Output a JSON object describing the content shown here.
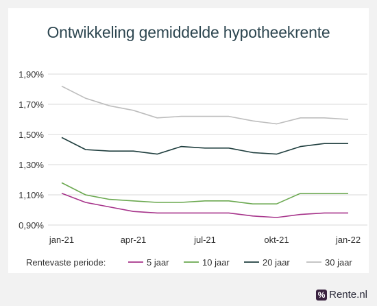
{
  "chart_data": {
    "type": "line",
    "title": "Ontwikkeling gemiddelde hypotheekrente",
    "x": [
      "jan-21",
      "feb-21",
      "mrt-21",
      "apr-21",
      "mei-21",
      "jun-21",
      "jul-21",
      "aug-21",
      "sep-21",
      "okt-21",
      "nov-21",
      "dec-21",
      "jan-22"
    ],
    "xticks": [
      "jan-21",
      "apr-21",
      "jul-21",
      "okt-21",
      "jan-22"
    ],
    "yticks": [
      "0,90%",
      "1,10%",
      "1,30%",
      "1,50%",
      "1,70%",
      "1,90%"
    ],
    "ylim": [
      0.85,
      1.95
    ],
    "legend_title": "Rentevaste periode:",
    "legend_position": "bottom",
    "grid": true,
    "series": [
      {
        "name": "5 jaar",
        "color": "#a6338a",
        "values": [
          1.11,
          1.05,
          1.02,
          0.99,
          0.98,
          0.98,
          0.98,
          0.98,
          0.96,
          0.95,
          0.97,
          0.98,
          0.98
        ]
      },
      {
        "name": "10 jaar",
        "color": "#6aa84f",
        "values": [
          1.18,
          1.1,
          1.07,
          1.06,
          1.05,
          1.05,
          1.06,
          1.06,
          1.04,
          1.04,
          1.11,
          1.11,
          1.11
        ]
      },
      {
        "name": "20 jaar",
        "color": "#1e3d3d",
        "values": [
          1.48,
          1.4,
          1.39,
          1.39,
          1.37,
          1.42,
          1.41,
          1.41,
          1.38,
          1.37,
          1.42,
          1.44,
          1.44
        ]
      },
      {
        "name": "30 jaar",
        "color": "#bdbdbd",
        "values": [
          1.82,
          1.74,
          1.69,
          1.66,
          1.61,
          1.62,
          1.62,
          1.62,
          1.59,
          1.57,
          1.61,
          1.61,
          1.6
        ]
      }
    ]
  },
  "brand": {
    "logo_mark": "%",
    "name": "Rente.nl"
  }
}
